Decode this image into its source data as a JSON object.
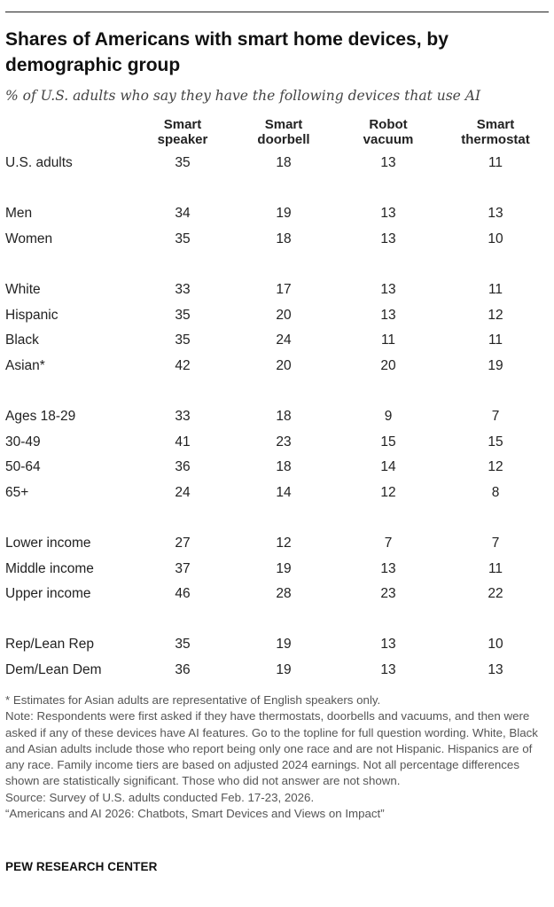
{
  "chart_data": {
    "type": "table",
    "title": "Shares of Americans with smart home devices, by demographic group",
    "subtitle": "% of U.S. adults who say they have the following devices that use AI",
    "columns": [
      {
        "line1": "Smart",
        "line2": "speaker"
      },
      {
        "line1": "Smart",
        "line2": "doorbell"
      },
      {
        "line1": "Robot",
        "line2": "vacuum"
      },
      {
        "line1": "Smart",
        "line2": "thermostat"
      }
    ],
    "groups": [
      [
        {
          "label": "U.S. adults",
          "values": [
            35,
            18,
            13,
            11
          ]
        }
      ],
      [
        {
          "label": "Men",
          "values": [
            34,
            19,
            13,
            13
          ]
        },
        {
          "label": "Women",
          "values": [
            35,
            18,
            13,
            10
          ]
        }
      ],
      [
        {
          "label": "White",
          "values": [
            33,
            17,
            13,
            11
          ]
        },
        {
          "label": "Hispanic",
          "values": [
            35,
            20,
            13,
            12
          ]
        },
        {
          "label": "Black",
          "values": [
            35,
            24,
            11,
            11
          ]
        },
        {
          "label": "Asian*",
          "values": [
            42,
            20,
            20,
            19
          ]
        }
      ],
      [
        {
          "label": "Ages 18-29",
          "values": [
            33,
            18,
            9,
            7
          ]
        },
        {
          "label": "30-49",
          "values": [
            41,
            23,
            15,
            15
          ]
        },
        {
          "label": "50-64",
          "values": [
            36,
            18,
            14,
            12
          ]
        },
        {
          "label": "65+",
          "values": [
            24,
            14,
            12,
            8
          ]
        }
      ],
      [
        {
          "label": "Lower income",
          "values": [
            27,
            12,
            7,
            7
          ]
        },
        {
          "label": "Middle income",
          "values": [
            37,
            19,
            13,
            11
          ]
        },
        {
          "label": "Upper income",
          "values": [
            46,
            28,
            23,
            22
          ]
        }
      ],
      [
        {
          "label": "Rep/Lean Rep",
          "values": [
            35,
            19,
            13,
            10
          ]
        },
        {
          "label": "Dem/Lean Dem",
          "values": [
            36,
            19,
            13,
            13
          ]
        }
      ]
    ]
  },
  "footnotes": {
    "asterisk": "* Estimates for Asian adults are representative of English speakers only.",
    "note": "Note: Respondents were first asked if they have thermostats, doorbells and vacuums, and then were asked if any of these devices have AI features. Go to the topline for full question wording. White, Black and Asian adults include those who report being only one race and are not Hispanic. Hispanics are of any race. Family income tiers are based on adjusted 2024 earnings. Not all percentage differences shown are statistically significant. Those who did not answer are not shown.",
    "source": "Source: Survey of U.S. adults conducted Feb. 17-23, 2026.",
    "report": "“Americans and AI 2026: Chatbots, Smart Devices and Views on Impact”"
  },
  "brand": "PEW RESEARCH CENTER",
  "colors": {
    "text": "#222222",
    "note": "#555555",
    "rule": "#222222"
  }
}
